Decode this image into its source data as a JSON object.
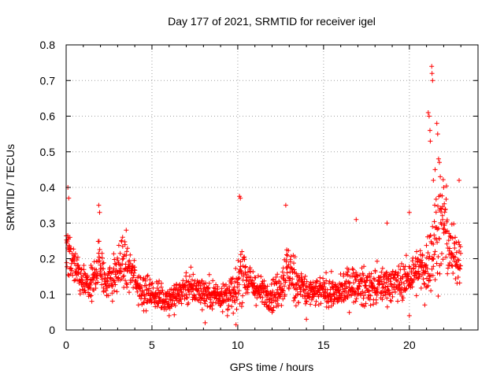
{
  "chart_data": {
    "type": "scatter",
    "title": "Day 177 of 2021, SRMTID for receiver igel",
    "xlabel": "GPS time / hours",
    "ylabel": "SRMTID / TECUs",
    "xlim": [
      0,
      24
    ],
    "ylim": [
      0,
      0.8
    ],
    "xticks": [
      0,
      5,
      10,
      15,
      20
    ],
    "xtick_labels": [
      "0",
      "5",
      "10",
      "15",
      "20"
    ],
    "yticks": [
      0,
      0.1,
      0.2,
      0.3,
      0.4,
      0.5,
      0.6,
      0.7,
      0.8
    ],
    "ytick_labels": [
      "0",
      "0.1",
      "0.2",
      "0.3",
      "0.4",
      "0.5",
      "0.6",
      "0.7",
      "0.8"
    ],
    "grid": true,
    "marker": "+",
    "color": "#ff0000",
    "x_range_observed": [
      0,
      23
    ],
    "envelope": {
      "hours": [
        0.0,
        0.3,
        0.6,
        1.0,
        1.5,
        1.9,
        2.3,
        2.8,
        3.3,
        3.8,
        4.3,
        5.0,
        5.6,
        6.2,
        7.0,
        7.8,
        8.6,
        9.3,
        9.9,
        10.2,
        10.6,
        11.2,
        11.8,
        12.4,
        12.9,
        13.5,
        14.2,
        15.0,
        15.8,
        16.6,
        17.3,
        18.0,
        18.6,
        19.2,
        19.8,
        20.3,
        20.8,
        21.2,
        21.6,
        22.0,
        22.4,
        22.8,
        23.0
      ],
      "median": [
        0.24,
        0.2,
        0.16,
        0.13,
        0.12,
        0.2,
        0.13,
        0.15,
        0.19,
        0.16,
        0.12,
        0.1,
        0.09,
        0.09,
        0.12,
        0.11,
        0.1,
        0.1,
        0.1,
        0.18,
        0.14,
        0.11,
        0.1,
        0.11,
        0.17,
        0.13,
        0.1,
        0.11,
        0.1,
        0.13,
        0.12,
        0.12,
        0.13,
        0.13,
        0.14,
        0.16,
        0.17,
        0.2,
        0.27,
        0.3,
        0.22,
        0.2,
        0.22
      ],
      "spread": [
        0.1,
        0.08,
        0.05,
        0.04,
        0.05,
        0.07,
        0.05,
        0.06,
        0.07,
        0.05,
        0.05,
        0.04,
        0.04,
        0.04,
        0.05,
        0.04,
        0.04,
        0.05,
        0.05,
        0.09,
        0.05,
        0.04,
        0.04,
        0.05,
        0.08,
        0.06,
        0.04,
        0.04,
        0.04,
        0.05,
        0.05,
        0.05,
        0.05,
        0.05,
        0.05,
        0.06,
        0.07,
        0.09,
        0.15,
        0.13,
        0.09,
        0.07,
        0.07
      ]
    },
    "peaks": [
      {
        "x": 0.1,
        "y": 0.4
      },
      {
        "x": 0.15,
        "y": 0.37
      },
      {
        "x": 1.9,
        "y": 0.35
      },
      {
        "x": 1.95,
        "y": 0.33
      },
      {
        "x": 3.5,
        "y": 0.28
      },
      {
        "x": 10.1,
        "y": 0.375
      },
      {
        "x": 10.15,
        "y": 0.37
      },
      {
        "x": 12.8,
        "y": 0.35
      },
      {
        "x": 16.9,
        "y": 0.31
      },
      {
        "x": 18.7,
        "y": 0.3
      },
      {
        "x": 20.0,
        "y": 0.33
      },
      {
        "x": 21.1,
        "y": 0.61
      },
      {
        "x": 21.15,
        "y": 0.6
      },
      {
        "x": 21.2,
        "y": 0.56
      },
      {
        "x": 21.22,
        "y": 0.53
      },
      {
        "x": 21.3,
        "y": 0.74
      },
      {
        "x": 21.32,
        "y": 0.72
      },
      {
        "x": 21.35,
        "y": 0.7
      },
      {
        "x": 21.6,
        "y": 0.58
      },
      {
        "x": 21.65,
        "y": 0.55
      },
      {
        "x": 21.7,
        "y": 0.48
      },
      {
        "x": 21.75,
        "y": 0.47
      },
      {
        "x": 21.8,
        "y": 0.43
      },
      {
        "x": 21.5,
        "y": 0.45
      },
      {
        "x": 21.4,
        "y": 0.42
      },
      {
        "x": 22.9,
        "y": 0.42
      },
      {
        "x": 22.0,
        "y": 0.4
      }
    ],
    "lows": [
      {
        "x": 9.9,
        "y": 0.015
      },
      {
        "x": 8.1,
        "y": 0.02
      },
      {
        "x": 9.4,
        "y": 0.04
      },
      {
        "x": 14.0,
        "y": 0.03
      },
      {
        "x": 12.0,
        "y": 0.05
      },
      {
        "x": 20.0,
        "y": 0.04
      },
      {
        "x": 20.9,
        "y": 0.07
      },
      {
        "x": 6.0,
        "y": 0.04
      }
    ]
  }
}
